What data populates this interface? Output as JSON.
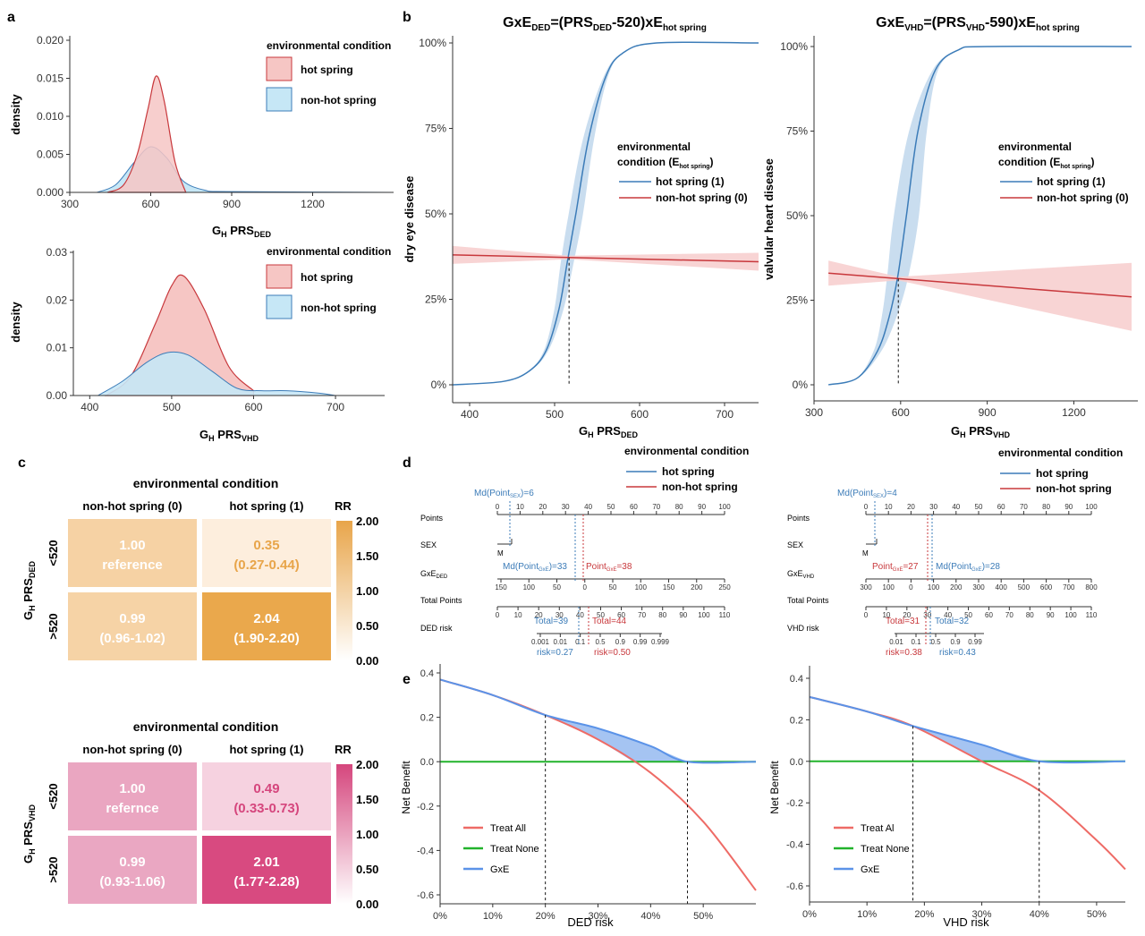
{
  "panel_letters": [
    "a",
    "b",
    "c",
    "d",
    "e"
  ],
  "a_top": {
    "xlabel_main": "G",
    "xlabel_sub": "H",
    "xlabel_rest": " PRS",
    "xlabel_sub2": "DED",
    "ylabel": "density",
    "legend_title": "environmental condition",
    "legend": [
      "hot spring",
      "non-hot spring"
    ],
    "xticks": [
      "300",
      "600",
      "900",
      "1200"
    ],
    "yticks": [
      "0.000",
      "0.005",
      "0.010",
      "0.015",
      "0.020"
    ]
  },
  "a_bottom": {
    "xlabel_main": "G",
    "xlabel_sub": "H",
    "xlabel_rest": " PRS",
    "xlabel_sub2": "VHD",
    "ylabel": "density",
    "legend_title": "environmental condition",
    "legend": [
      "hot spring",
      "non-hot spring"
    ],
    "xticks": [
      "400",
      "500",
      "600",
      "700"
    ],
    "yticks": [
      "0.00",
      "0.01",
      "0.02",
      "0.03"
    ]
  },
  "b_left": {
    "title": "GxE",
    "title_sub": "DED",
    "title_rest": "=(PRS",
    "title_sub2": "DED",
    "title_rest2": "-520)xE",
    "title_sub3": "hot spring",
    "ylabel": "dry eye disease",
    "xlabel_main": "G",
    "xlabel_sub": "H",
    "xlabel_rest": " PRS",
    "xlabel_sub2": "DED",
    "legend_title1": "environmental",
    "legend_title2": "condition (E",
    "legend_title_sub": "hot spring",
    "legend_title_end": ")",
    "legend": [
      "hot spring (1)",
      "non-hot spring (0)"
    ],
    "xticks": [
      "400",
      "500",
      "600",
      "700"
    ],
    "yticks": [
      "0%",
      "25%",
      "50%",
      "75%",
      "100%"
    ]
  },
  "b_right": {
    "title": "GxE",
    "title_sub": "VHD",
    "title_rest": "=(PRS",
    "title_sub2": "VHD",
    "title_rest2": "-590)xE",
    "title_sub3": "hot spring",
    "ylabel": "valvular heart disease",
    "xlabel_main": "G",
    "xlabel_sub": "H",
    "xlabel_rest": " PRS",
    "xlabel_sub2": "VHD",
    "legend_title1": "environmental",
    "legend_title2": "condition (E",
    "legend_title_sub": "hot spring",
    "legend_title_end": ")",
    "legend": [
      "hot spring (1)",
      "non-hot spring (0)"
    ],
    "xticks": [
      "300",
      "600",
      "900",
      "1200"
    ],
    "yticks": [
      "0%",
      "25%",
      "50%",
      "75%",
      "100%"
    ]
  },
  "c_top": {
    "title": "environmental condition",
    "cols": [
      "non-hot spring (0)",
      "hot spring (1)"
    ],
    "rows": [
      "<520",
      ">520"
    ],
    "row_axis_main": "G",
    "row_axis_sub": "H",
    "row_axis_rest": " PRS",
    "row_axis_sub2": "DED",
    "cells": [
      [
        "1.00",
        "reference"
      ],
      [
        "0.35",
        "(0.27-0.44)"
      ],
      [
        "0.99",
        "(0.96-1.02)"
      ],
      [
        "2.04",
        "(1.90-2.20)"
      ]
    ],
    "rr_label": "RR",
    "scale": [
      "2.00",
      "1.50",
      "1.00",
      "0.50",
      "0.00"
    ]
  },
  "c_bottom": {
    "title": "environmental condition",
    "cols": [
      "non-hot spring (0)",
      "hot spring (1)"
    ],
    "rows": [
      "<520",
      ">520"
    ],
    "row_axis_main": "G",
    "row_axis_sub": "H",
    "row_axis_rest": " PRS",
    "row_axis_sub2": "VHD",
    "cells": [
      [
        "1.00",
        "refernce"
      ],
      [
        "0.49",
        "(0.33-0.73)"
      ],
      [
        "0.99",
        "(0.93-1.06)"
      ],
      [
        "2.01",
        "(1.77-2.28)"
      ]
    ],
    "rr_label": "RR",
    "scale": [
      "2.00",
      "1.50",
      "1.00",
      "0.50",
      "0.00"
    ]
  },
  "d_left": {
    "legend_title": "environmental condition",
    "legend": [
      "hot spring",
      "non-hot spring"
    ],
    "row_labels": [
      "Points",
      "SEX",
      "GxE",
      "Total Points",
      "DED risk"
    ],
    "gxe_sub": "DED",
    "points_ticks": [
      "0",
      "10",
      "20",
      "30",
      "40",
      "50",
      "60",
      "70",
      "80",
      "90",
      "100"
    ],
    "gxe_ticks": [
      "150",
      "100",
      "50",
      "0",
      "50",
      "100",
      "150",
      "200",
      "250"
    ],
    "total_ticks": [
      "0",
      "10",
      "20",
      "30",
      "40",
      "50",
      "60",
      "70",
      "80",
      "90",
      "100",
      "110"
    ],
    "risk_ticks": [
      "0.001",
      "0.01",
      "0.1",
      "0.5",
      "0.9",
      "0.99",
      "0.999"
    ],
    "sex_label": "M",
    "ann_top": "Md(Point",
    "ann_top_sub": "SEX",
    "ann_top_end": ")=6",
    "ann_md": "Md(Point",
    "ann_md_sub": "GxE",
    "ann_md_end": ")=33",
    "ann_point": "Point",
    "ann_point_sub": "GxE",
    "ann_point_end": "=38",
    "ann_total_blue": "Total=39",
    "ann_total_red": "Total=44",
    "ann_risk_blue": "risk=0.27",
    "ann_risk_red": "risk=0.50"
  },
  "d_right": {
    "legend_title": "environmental condition",
    "legend": [
      "hot spring",
      "non-hot spring"
    ],
    "row_labels": [
      "Points",
      "SEX",
      "GxE",
      "Total Points",
      "VHD risk"
    ],
    "gxe_sub": "VHD",
    "points_ticks": [
      "0",
      "10",
      "20",
      "30",
      "40",
      "50",
      "60",
      "70",
      "80",
      "90",
      "100"
    ],
    "gxe_ticks": [
      "300",
      "100",
      "0",
      "100",
      "200",
      "300",
      "400",
      "500",
      "600",
      "700",
      "800"
    ],
    "total_ticks": [
      "0",
      "10",
      "20",
      "30",
      "40",
      "50",
      "60",
      "70",
      "80",
      "90",
      "100",
      "110"
    ],
    "risk_ticks": [
      "0.01",
      "0.1",
      "0.5",
      "0.9",
      "0.99"
    ],
    "sex_label": "M",
    "ann_top": "Md(Point",
    "ann_top_sub": "SEX",
    "ann_top_end": ")=4",
    "ann_point": "Point",
    "ann_point_sub": "GxE",
    "ann_point_end": "=27",
    "ann_md": "Md(Point",
    "ann_md_sub": "GxE",
    "ann_md_end": ")=28",
    "ann_total_red": "Total=31",
    "ann_total_blue": "Total=32",
    "ann_risk_red": "risk=0.38",
    "ann_risk_blue": "risk=0.43"
  },
  "e_left": {
    "ylabel": "Net Benefit",
    "xlabel": "DED risk",
    "legend": [
      "Treat All",
      "Treat None",
      "GxE"
    ],
    "xticks": [
      "0%",
      "10%",
      "20%",
      "30%",
      "40%",
      "50%"
    ],
    "yticks": [
      "0.4",
      "0.2",
      "0.0",
      "-0.2",
      "-0.4",
      "-0.6"
    ]
  },
  "e_right": {
    "ylabel": "Net Benefit",
    "xlabel": "VHD risk",
    "legend": [
      "Treat Al",
      "Treat None",
      "GxE"
    ],
    "xticks": [
      "0%",
      "10%",
      "20%",
      "30%",
      "40%",
      "50%"
    ],
    "yticks": [
      "0.4",
      "0.2",
      "0.0",
      "-0.2",
      "-0.4",
      "-0.6"
    ]
  },
  "colors": {
    "red": "#c8383c",
    "redfill": "#f6c6c4",
    "blue": "#3c7cb8",
    "bluefill": "#c6e7f6",
    "ribbonblue": "#c9ddef",
    "ribbonred": "#f7cfcf",
    "green": "#22b32c",
    "nbblue": "#5b93e8",
    "nbred": "#ee6b66",
    "orange_hi": "#e8a54a",
    "orange_lo": "#fdf3e8",
    "pink_hi": "#d5467d",
    "pink_lo": "#fbeef3"
  },
  "chart_data": [
    {
      "type": "area",
      "panel": "a-top",
      "x_label": "G_H PRS_DED",
      "y_label": "density",
      "xlim": [
        300,
        1500
      ],
      "ylim": [
        0,
        0.02
      ],
      "series": [
        {
          "name": "hot spring",
          "x": [
            440,
            500,
            550,
            590,
            620,
            650,
            690,
            730
          ],
          "y": [
            0,
            0.001,
            0.005,
            0.011,
            0.0153,
            0.012,
            0.004,
            0
          ]
        },
        {
          "name": "non-hot spring",
          "x": [
            400,
            470,
            540,
            600,
            660,
            720,
            800,
            900,
            1500
          ],
          "y": [
            0,
            0.001,
            0.004,
            0.006,
            0.0045,
            0.0015,
            0.0003,
            0.0001,
            0
          ]
        }
      ]
    },
    {
      "type": "area",
      "panel": "a-bottom",
      "x_label": "G_H PRS_VHD",
      "y_label": "density",
      "xlim": [
        380,
        760
      ],
      "ylim": [
        0,
        0.03
      ],
      "series": [
        {
          "name": "hot spring",
          "x": [
            420,
            450,
            480,
            500,
            515,
            540,
            570,
            600
          ],
          "y": [
            0,
            0.004,
            0.015,
            0.023,
            0.025,
            0.018,
            0.006,
            0.001
          ]
        },
        {
          "name": "non-hot spring",
          "x": [
            410,
            440,
            470,
            495,
            520,
            550,
            580,
            610,
            640,
            680,
            700
          ],
          "y": [
            0,
            0.003,
            0.007,
            0.009,
            0.0085,
            0.005,
            0.0015,
            0.001,
            0.001,
            0.0005,
            0
          ]
        }
      ]
    },
    {
      "type": "line",
      "panel": "b-left",
      "x_label": "G_H PRS_DED",
      "y_label": "dry eye disease",
      "xlim": [
        380,
        740
      ],
      "ylim": [
        0,
        1
      ],
      "series": [
        {
          "name": "hot spring (1)",
          "x": [
            380,
            440,
            470,
            490,
            505,
            515,
            525,
            540,
            560,
            580,
            620,
            740
          ],
          "y": [
            0,
            0.01,
            0.04,
            0.1,
            0.22,
            0.36,
            0.5,
            0.72,
            0.9,
            0.97,
            1,
            1
          ]
        },
        {
          "name": "non-hot spring (0)",
          "x": [
            380,
            740
          ],
          "y": [
            0.38,
            0.36
          ]
        }
      ],
      "crossing_x": 517
    },
    {
      "type": "line",
      "panel": "b-right",
      "x_label": "G_H PRS_VHD",
      "y_label": "valvular heart disease",
      "xlim": [
        300,
        1400
      ],
      "ylim": [
        0,
        1
      ],
      "series": [
        {
          "name": "hot spring (1)",
          "x": [
            350,
            450,
            520,
            560,
            590,
            620,
            660,
            720,
            800,
            900,
            1400
          ],
          "y": [
            0,
            0.02,
            0.1,
            0.2,
            0.32,
            0.5,
            0.75,
            0.93,
            0.99,
            1,
            1
          ]
        },
        {
          "name": "non-hot spring (0)",
          "x": [
            350,
            1400
          ],
          "y": [
            0.33,
            0.26
          ]
        }
      ],
      "crossing_x": 592
    },
    {
      "type": "heatmap",
      "panel": "c-top",
      "rows": [
        "<520",
        ">520"
      ],
      "cols": [
        "non-hot spring (0)",
        "hot spring (1)"
      ],
      "values": [
        [
          1.0,
          0.35
        ],
        [
          0.99,
          2.04
        ]
      ],
      "scale": [
        0,
        2
      ]
    },
    {
      "type": "heatmap",
      "panel": "c-bottom",
      "rows": [
        "<520",
        ">520"
      ],
      "cols": [
        "non-hot spring (0)",
        "hot spring (1)"
      ],
      "values": [
        [
          1.0,
          0.49
        ],
        [
          0.99,
          2.01
        ]
      ],
      "scale": [
        0,
        2
      ]
    },
    {
      "type": "line",
      "panel": "e-left",
      "x_label": "DED risk",
      "y_label": "Net Benefit",
      "xlim": [
        0,
        0.6
      ],
      "ylim": [
        -0.6,
        0.4
      ],
      "series": [
        {
          "name": "Treat All",
          "x": [
            0,
            0.1,
            0.2,
            0.3,
            0.4,
            0.5,
            0.6
          ],
          "y": [
            0.37,
            0.3,
            0.21,
            0.1,
            -0.05,
            -0.27,
            -0.58
          ]
        },
        {
          "name": "Treat None",
          "x": [
            0,
            0.6
          ],
          "y": [
            0,
            0
          ]
        },
        {
          "name": "GxE",
          "x": [
            0,
            0.1,
            0.2,
            0.3,
            0.4,
            0.47,
            0.6
          ],
          "y": [
            0.37,
            0.3,
            0.21,
            0.15,
            0.07,
            0,
            0
          ]
        }
      ],
      "markers_x": [
        0.2,
        0.47
      ]
    },
    {
      "type": "line",
      "panel": "e-right",
      "x_label": "VHD risk",
      "y_label": "Net Benefit",
      "xlim": [
        0,
        0.55
      ],
      "ylim": [
        -0.6,
        0.4
      ],
      "series": [
        {
          "name": "Treat Al",
          "x": [
            0,
            0.1,
            0.18,
            0.3,
            0.4,
            0.5,
            0.55
          ],
          "y": [
            0.31,
            0.24,
            0.17,
            0.0,
            -0.14,
            -0.38,
            -0.52
          ]
        },
        {
          "name": "Treat None",
          "x": [
            0,
            0.55
          ],
          "y": [
            0,
            0
          ]
        },
        {
          "name": "GxE",
          "x": [
            0,
            0.1,
            0.18,
            0.3,
            0.4,
            0.55
          ],
          "y": [
            0.31,
            0.24,
            0.17,
            0.08,
            0,
            0
          ]
        }
      ],
      "markers_x": [
        0.18,
        0.4
      ]
    }
  ]
}
